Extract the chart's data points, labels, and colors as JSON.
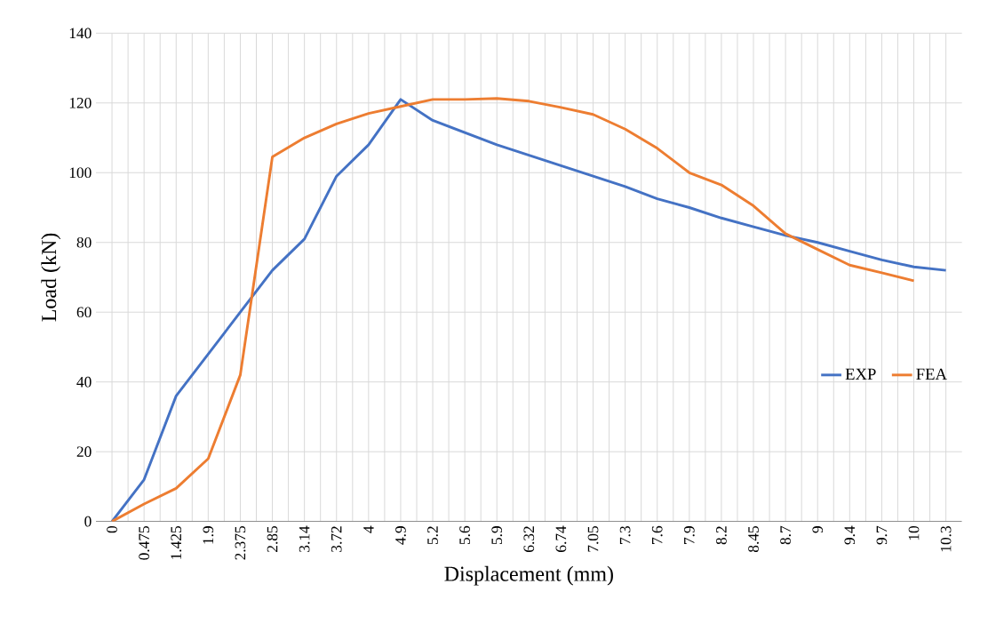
{
  "chart_data": {
    "type": "line",
    "xlabel": "Displacement (mm)",
    "ylabel": "Load (kN)",
    "categories": [
      "0",
      "0.475",
      "1.425",
      "1.9",
      "2.375",
      "2.85",
      "3.14",
      "3.72",
      "4",
      "4.9",
      "5.2",
      "5.6",
      "5.9",
      "6.32",
      "6.74",
      "7.05",
      "7.3",
      "7.6",
      "7.9",
      "8.2",
      "8.45",
      "8.7",
      "9",
      "9.4",
      "9.7",
      "10",
      "10.3"
    ],
    "series": [
      {
        "name": "EXP",
        "color": "#4472c4",
        "values": [
          0,
          12,
          36,
          48,
          60,
          72,
          81,
          99,
          108,
          121,
          115,
          111.5,
          108,
          105,
          102,
          99,
          96,
          92.5,
          90,
          87,
          84.5,
          82,
          80,
          77.5,
          75,
          73,
          72
        ]
      },
      {
        "name": "FEA",
        "color": "#ed7d31",
        "values": [
          0,
          5,
          9.5,
          18,
          42,
          104.5,
          110,
          114,
          117,
          119,
          121,
          121,
          121.3,
          120.5,
          118.7,
          116.7,
          112.5,
          107,
          100,
          96.5,
          90.5,
          82.5,
          78,
          73.5,
          71.3,
          69,
          null
        ]
      }
    ],
    "ylim": [
      0,
      140
    ],
    "yticks": [
      0,
      20,
      40,
      60,
      80,
      100,
      120,
      140
    ],
    "grid": true,
    "legend": "right",
    "marker": "none",
    "line_style": "solid"
  }
}
